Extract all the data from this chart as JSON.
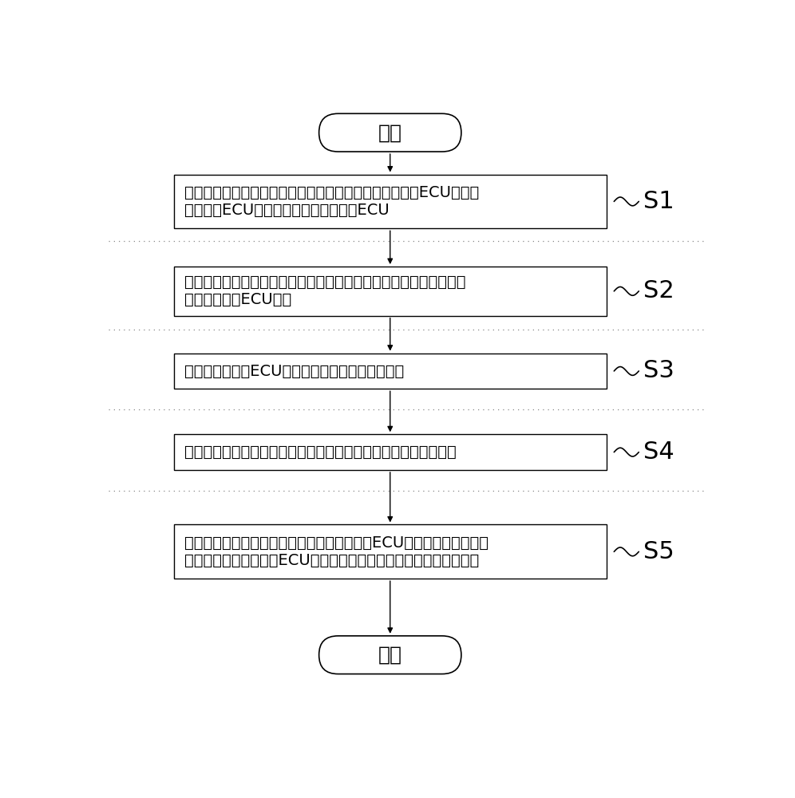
{
  "background_color": "#ffffff",
  "title_text": "开始",
  "end_text": "结束",
  "steps": [
    {
      "label": "S1",
      "text": "预先通过串口线束将车体各部位的传感器执行器连接区域ECU，并且\n不同区域ECU进行串口线束连接于车载ECU",
      "lines": 2
    },
    {
      "label": "S2",
      "text": "通信接口将不同的通信总线转换成一致的通信总线，上位机通过该通\n信接口与车载ECU连接",
      "lines": 2
    },
    {
      "label": "S3",
      "text": "上位机扫描车载ECU设备节点，并获取目标升级包",
      "lines": 1
    },
    {
      "label": "S4",
      "text": "提取目标升级包的对象标识，确定目标升级包耦合的目标镜像文件",
      "lines": 1
    },
    {
      "label": "S5",
      "text": "确定对象标识耦合目标镜像文件并向所述车载ECU设备节点发送该目标\n镜像文件，以指示车载ECU设备节点根据所述目标镜像文件进行升级",
      "lines": 2
    }
  ],
  "arrow_color": "#000000",
  "box_edge_color": "#000000",
  "box_fill_color": "#ffffff",
  "text_color": "#000000",
  "dotted_line_color": "#888888",
  "label_color": "#000000",
  "font_size_box": 14,
  "font_size_terminal": 18,
  "font_size_label": 22
}
